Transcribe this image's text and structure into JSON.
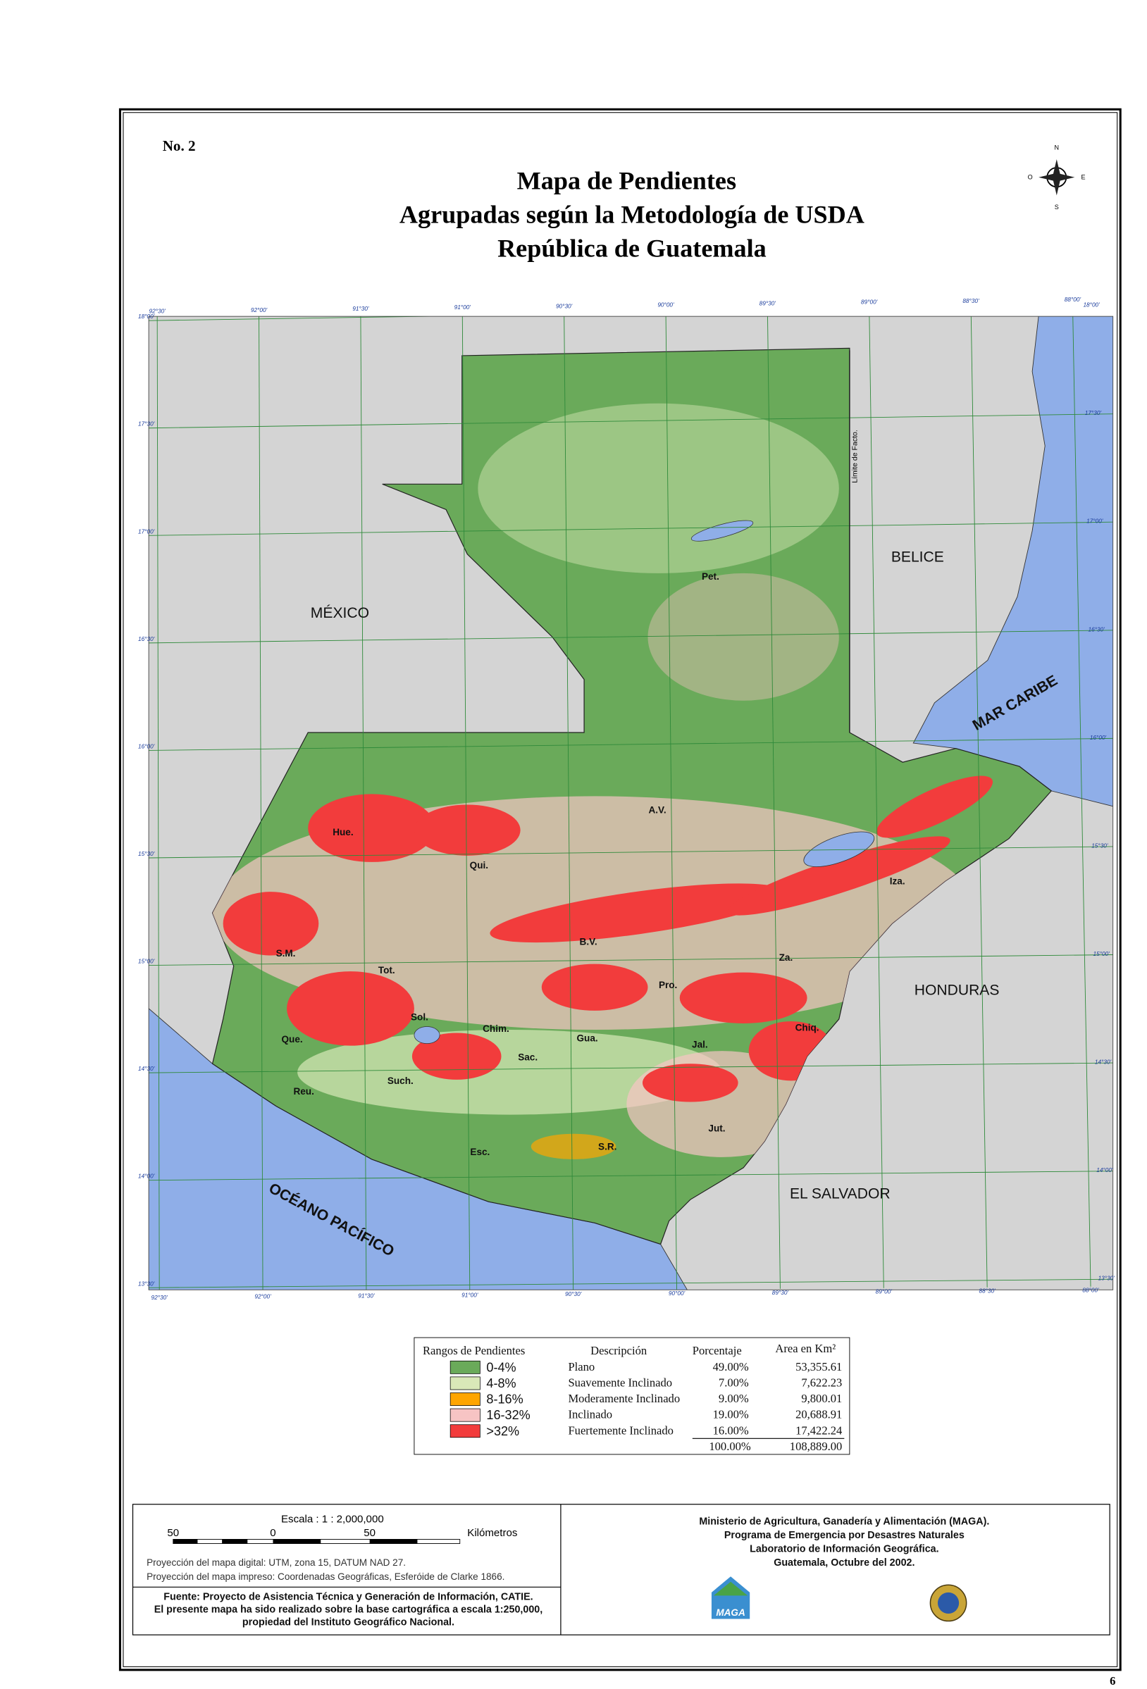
{
  "header": {
    "number": "No. 2",
    "title": [
      "Mapa de Pendientes",
      "Agrupadas según la Metodología de USDA",
      "República de Guatemala"
    ]
  },
  "compass": {
    "north": "N",
    "south": "S",
    "east": "E",
    "west": "O"
  },
  "map": {
    "countries": [
      "MÉXICO",
      "BELICE",
      "HONDURAS",
      "EL SALVADOR"
    ],
    "seas": [
      "MAR CARIBE",
      "OCÉANO PACÍFICO"
    ],
    "boundary_note": "Límite de Facto.",
    "departments": [
      "Pet.",
      "A.V.",
      "Hue.",
      "Qui.",
      "Iza.",
      "B.V.",
      "S.M.",
      "Tot.",
      "Za.",
      "Pro.",
      "Sol.",
      "Chim.",
      "Chiq.",
      "Que.",
      "Gua.",
      "Jal.",
      "Sac.",
      "Reu.",
      "Such.",
      "Jut.",
      "S.R.",
      "Esc."
    ],
    "grid_labels": {
      "top": [
        "92°30'",
        "92°00'",
        "91°30'",
        "91°00'",
        "90°30'",
        "90°00'",
        "89°30'",
        "89°00'",
        "88°30'",
        "88°00'"
      ],
      "bottom": [
        "92°30'",
        "92°00'",
        "91°30'",
        "91°00'",
        "90°30'",
        "90°00'",
        "89°30'",
        "89°00'",
        "88°30'",
        "88°00'"
      ],
      "left": [
        "18°00'",
        "17°30'",
        "17°00'",
        "16°30'",
        "16°00'",
        "15°30'",
        "15°00'",
        "14°30'",
        "14°00'",
        "13°30'"
      ],
      "right": [
        "18°00'",
        "17°30'",
        "17°00'",
        "16°30'",
        "16°00'",
        "15°30'",
        "15°00'",
        "14°30'",
        "14°00'",
        "13°30'"
      ]
    }
  },
  "legend": {
    "headers": [
      "Rangos de Pendientes",
      "Descripción",
      "Porcentaje",
      "Area en Km²"
    ],
    "colors": [
      "#6aaa5a",
      "#d9e8b8",
      "#ffa500",
      "#f7c4c4",
      "#f23c3c"
    ],
    "rows": [
      [
        "0-4%",
        "Plano",
        "49.00%",
        "53,355.61"
      ],
      [
        "4-8%",
        "Suavemente Inclinado",
        "7.00%",
        "7,622.23"
      ],
      [
        "8-16%",
        "Moderamente Inclinado",
        "9.00%",
        "9,800.01"
      ],
      [
        "16-32%",
        "Inclinado",
        "19.00%",
        "20,688.91"
      ],
      [
        ">32%",
        "Fuertemente Inclinado",
        "16.00%",
        "17,422.24"
      ]
    ],
    "total": [
      "100.00%",
      "108,889.00"
    ]
  },
  "footer": {
    "scale_title": "Escala : 1 : 2,000,000",
    "scale_ticks": [
      "50",
      "0",
      "50"
    ],
    "scale_unit": "Kilómetros",
    "projection": [
      "Proyección del mapa digital: UTM, zona 15, DATUM NAD 27.",
      "Proyección del mapa impreso: Coordenadas Geográficas, Esferóide de Clarke 1866."
    ],
    "source": [
      "Fuente:  Proyecto de Asistencia Técnica y Generación de Información, CATIE.",
      "El presente mapa ha sido realizado sobre la base cartográfica a escala 1:250,000,",
      "propiedad del Instituto Geográfico Nacional."
    ],
    "institution": [
      "Ministerio de Agricultura, Ganadería y Alimentación  (MAGA).",
      "Programa de Emergencia por Desastres Naturales",
      "Laboratorio de Información Geográfica.",
      "Guatemala, Octubre del 2002."
    ],
    "logo": "MAGA"
  },
  "page_number": "6"
}
